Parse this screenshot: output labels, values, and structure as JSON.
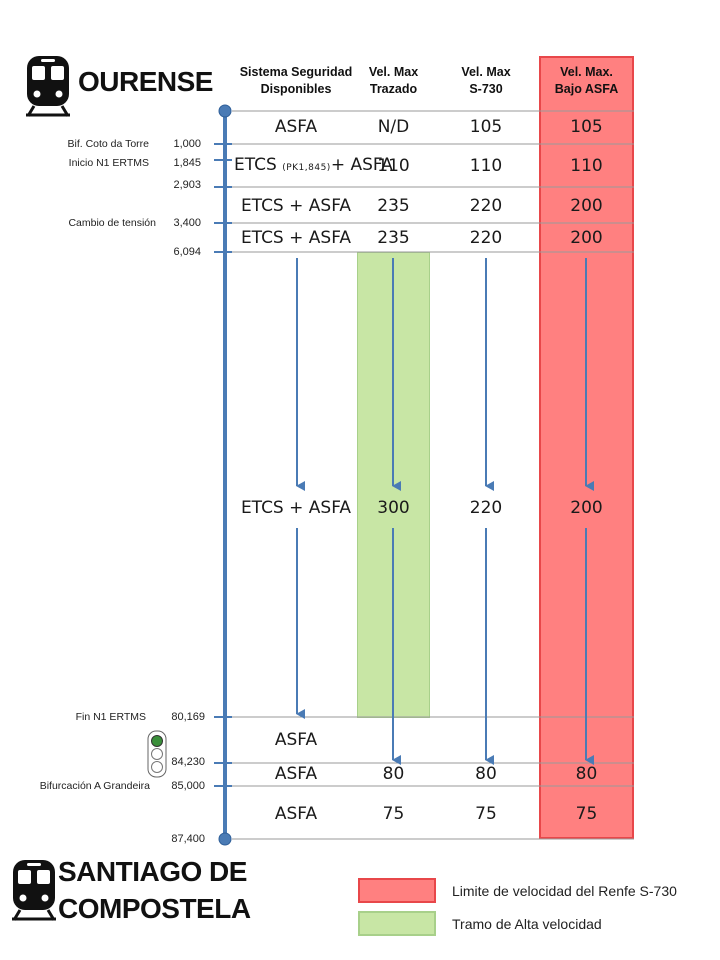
{
  "origin": {
    "name": "OURENSE",
    "icon": "train-icon"
  },
  "destination": {
    "name_line1": "SANTIAGO DE",
    "name_line2": "COMPOSTELA",
    "icon": "train-icon"
  },
  "headers": {
    "security": [
      "Sistema Seguridad",
      "Disponibles"
    ],
    "trazado": [
      "Vel. Max",
      "Trazado"
    ],
    "s730": [
      "Vel. Max",
      "S-730"
    ],
    "asfa": [
      "Vel. Max.",
      "Bajo ASFA"
    ]
  },
  "pk_labels": [
    "1,000",
    "1,845",
    "2,903",
    "3,400",
    "6,094",
    "80,169",
    "84,230",
    "85,000",
    "87,400"
  ],
  "point_labels": [
    "Bif. Coto da Torre",
    "Inicio N1 ERTMS",
    "Cambio de tensión",
    "Fin N1 ERTMS",
    "Bifurcación A Grandeira"
  ],
  "rows": [
    {
      "security": "ASFA",
      "trazado": "N/D",
      "s730": "105",
      "asfa": "105"
    },
    {
      "security_a": "ETCS",
      "security_pk": "(PK1,845)",
      "security_b": "+ ASFA",
      "trazado": "110",
      "s730": "110",
      "asfa": "110"
    },
    {
      "security": "ETCS + ASFA",
      "trazado": "235",
      "s730": "220",
      "asfa": "200"
    },
    {
      "security": "ETCS + ASFA",
      "trazado": "235",
      "s730": "220",
      "asfa": "200"
    },
    {
      "security": "ETCS + ASFA",
      "trazado": "300",
      "s730": "220",
      "asfa": "200"
    },
    {
      "security": "ASFA"
    },
    {
      "security": "ASFA",
      "trazado": "80",
      "s730": "80",
      "asfa": "80"
    },
    {
      "security": "ASFA",
      "trazado": "75",
      "s730": "75",
      "asfa": "75"
    }
  ],
  "legend": [
    {
      "label": "Limite de velocidad del Renfe S-730",
      "color": "#ff8080"
    },
    {
      "label": "Tramo de Alta velocidad",
      "color": "#c8e6a5"
    }
  ],
  "colors": {
    "line": "#4a7bb5",
    "red_fill": "#ff8080",
    "red_border": "#e8474a",
    "green_fill": "#c8e6a5",
    "green_border": "#a8d08a"
  }
}
